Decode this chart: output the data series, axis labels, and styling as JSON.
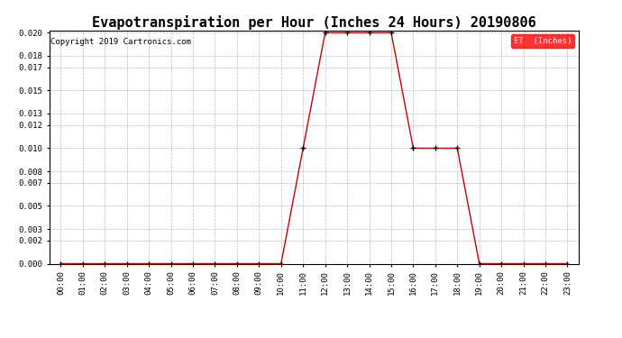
{
  "title": "Evapotranspiration per Hour (Inches 24 Hours) 20190806",
  "copyright": "Copyright 2019 Cartronics.com",
  "legend_label": "ET  (Inches)",
  "legend_bg": "#ff0000",
  "legend_text_color": "#ffffff",
  "line_color": "#cc0000",
  "marker_color": "#000000",
  "background_color": "#ffffff",
  "grid_color": "#aaaaaa",
  "hours": [
    "00:00",
    "01:00",
    "02:00",
    "03:00",
    "04:00",
    "05:00",
    "06:00",
    "07:00",
    "08:00",
    "09:00",
    "10:00",
    "11:00",
    "12:00",
    "13:00",
    "14:00",
    "15:00",
    "16:00",
    "17:00",
    "18:00",
    "19:00",
    "20:00",
    "21:00",
    "22:00",
    "23:00"
  ],
  "values": [
    0.0,
    0.0,
    0.0,
    0.0,
    0.0,
    0.0,
    0.0,
    0.0,
    0.0,
    0.0,
    0.0,
    0.01,
    0.02,
    0.02,
    0.02,
    0.02,
    0.01,
    0.01,
    0.01,
    0.0,
    0.0,
    0.0,
    0.0,
    0.0
  ],
  "ylim": [
    0.0,
    0.02
  ],
  "yticks": [
    0.0,
    0.002,
    0.003,
    0.005,
    0.007,
    0.008,
    0.01,
    0.012,
    0.013,
    0.015,
    0.017,
    0.018,
    0.02
  ],
  "title_fontsize": 11,
  "tick_fontsize": 6.5,
  "copyright_fontsize": 6.5
}
